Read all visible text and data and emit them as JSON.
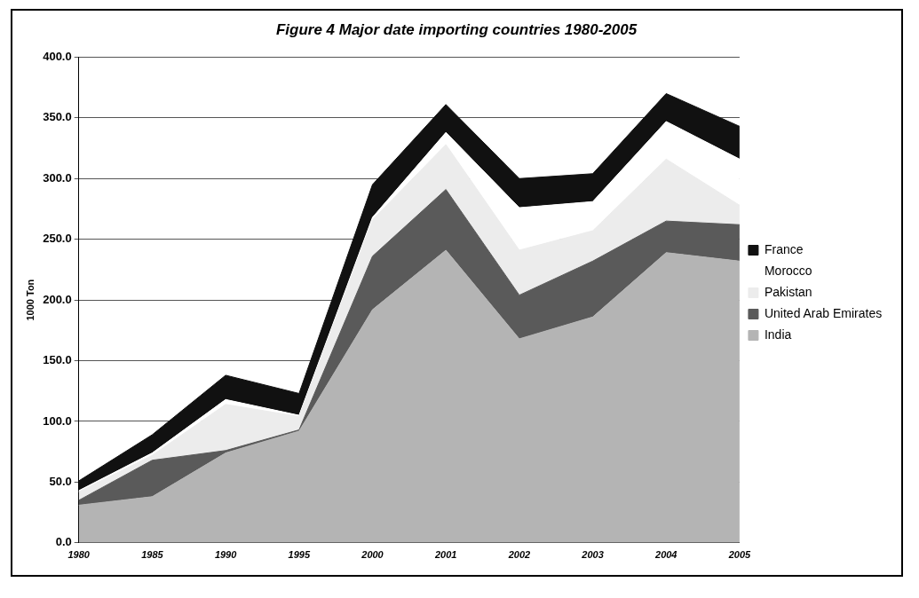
{
  "chart_data": {
    "type": "area",
    "title": "Figure 4 Major date importing countries 1980-2005",
    "ylabel": "1000 Ton",
    "categories": [
      "1980",
      "1985",
      "1990",
      "1995",
      "2000",
      "2001",
      "2002",
      "2003",
      "2004",
      "2005"
    ],
    "stacked": true,
    "ylim": [
      0,
      400
    ],
    "yticks": [
      {
        "value": 0,
        "label": "0.0"
      },
      {
        "value": 50,
        "label": "50.0"
      },
      {
        "value": 100,
        "label": "100.0"
      },
      {
        "value": 150,
        "label": "150.0"
      },
      {
        "value": 200,
        "label": "200.0"
      },
      {
        "value": 250,
        "label": "250.0"
      },
      {
        "value": 300,
        "label": "300.0"
      },
      {
        "value": 350,
        "label": "350.0"
      },
      {
        "value": 400,
        "label": "400.0"
      }
    ],
    "grid": "y",
    "legend": "right",
    "series": [
      {
        "name": "India",
        "color": "#b4b4b4",
        "values": [
          31,
          38,
          74,
          92,
          192,
          241,
          168,
          186,
          239,
          232
        ]
      },
      {
        "name": "United Arab Emirates",
        "color": "#5a5a5a",
        "values": [
          4,
          30,
          2,
          1,
          44,
          50,
          36,
          46,
          26,
          30
        ]
      },
      {
        "name": "Pakistan",
        "color": "#ececec",
        "values": [
          7,
          4,
          38,
          11,
          30,
          37,
          37,
          25,
          51,
          16
        ]
      },
      {
        "name": "Morocco",
        "color": "#ffffff",
        "values": [
          1,
          2,
          4,
          1,
          2,
          10,
          35,
          24,
          31,
          38
        ]
      },
      {
        "name": "France",
        "color": "#111111",
        "values": [
          8,
          15,
          20,
          18,
          27,
          23,
          24,
          23,
          23,
          27
        ]
      }
    ]
  }
}
